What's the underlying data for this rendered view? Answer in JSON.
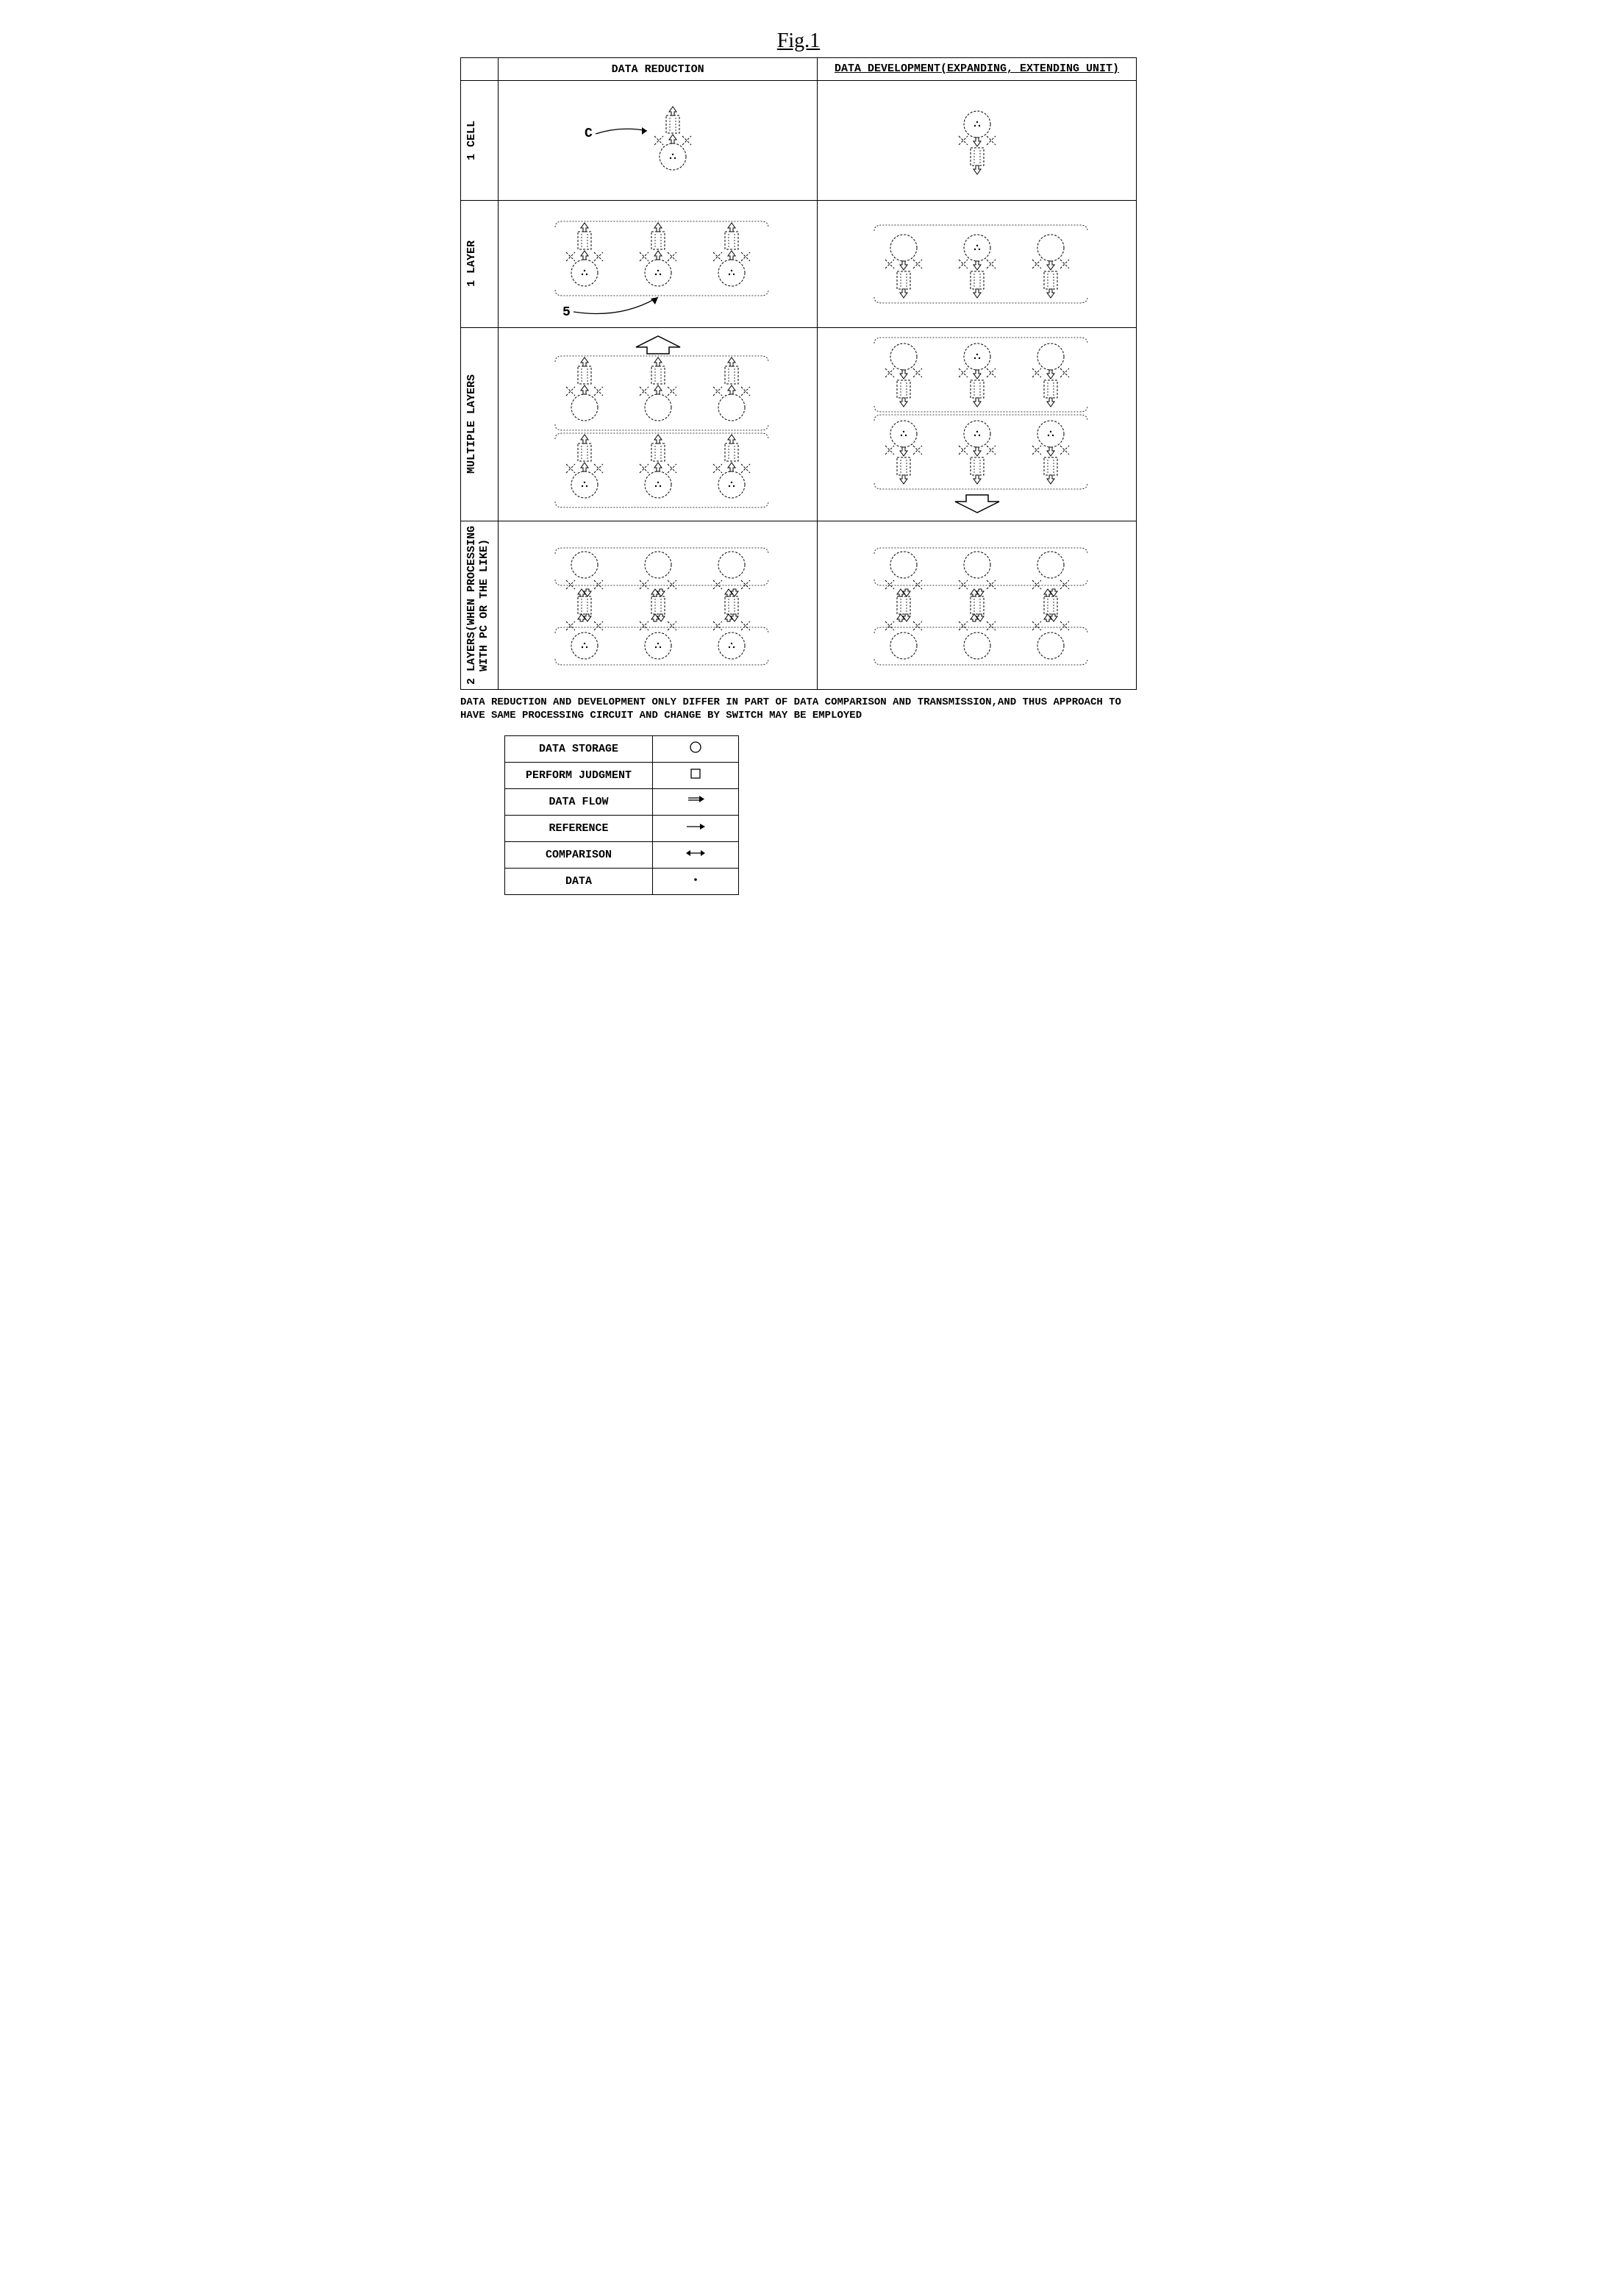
{
  "figure_title": "Fig.1",
  "headers": {
    "col1": "DATA REDUCTION",
    "col2": "DATA DEVELOPMENT(EXPANDING,\nEXTENDING UNIT)"
  },
  "rows": {
    "r1": "1 CELL",
    "r2": "1 LAYER",
    "r3": "MULTIPLE LAYERS",
    "r4": "2 LAYERS(WHEN PROCESSING\nWITH PC OR THE LIKE)"
  },
  "annotations": {
    "c_label": "C",
    "five_label": "5"
  },
  "caption": "DATA REDUCTION AND DEVELOPMENT ONLY DIFFER IN PART OF DATA COMPARISON AND TRANSMISSION,AND THUS APPROACH TO HAVE SAME PROCESSING CIRCUIT AND CHANGE BY SWITCH MAY BE EMPLOYED",
  "legend": [
    {
      "label": "DATA STORAGE",
      "symbol": "circle"
    },
    {
      "label": "PERFORM JUDGMENT",
      "symbol": "square"
    },
    {
      "label": "DATA FLOW",
      "symbol": "doublearrow"
    },
    {
      "label": "REFERENCE",
      "symbol": "arrow"
    },
    {
      "label": "COMPARISON",
      "symbol": "leftrightarrow"
    },
    {
      "label": "DATA",
      "symbol": "dot"
    }
  ],
  "style": {
    "stroke": "#000000",
    "dash": "3,2",
    "circle_r": 18,
    "square_w": 18,
    "square_h": 24,
    "row_heights": {
      "r1": 170,
      "r2": 170,
      "r3": 260,
      "r4": 190
    }
  }
}
